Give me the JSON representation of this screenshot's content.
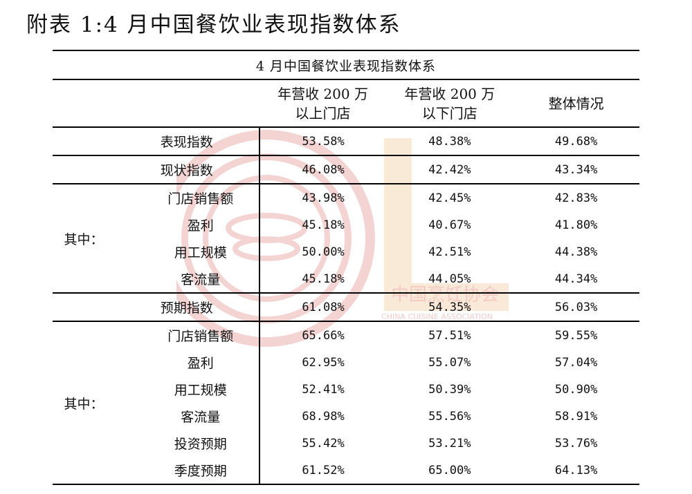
{
  "heading": "附表 1:4 月中国餐饮业表现指数体系",
  "table": {
    "caption": "4 月中国餐饮业表现指数体系",
    "columns": [
      "年营收 200 万\n以上门店",
      "年营收 200 万\n以下门店",
      "整体情况"
    ],
    "col1_line1": "年营收 200 万",
    "col1_line2": "以上门店",
    "col2_line1": "年营收 200 万",
    "col2_line2": "以下门店",
    "col3": "整体情况",
    "group_label": "其中：",
    "rows": [
      {
        "label": "表现指数",
        "values": [
          "53.58%",
          "48.38%",
          "49.68%"
        ]
      },
      {
        "label": "现状指数",
        "values": [
          "46.08%",
          "42.42%",
          "43.34%"
        ]
      },
      {
        "label": "门店销售额",
        "values": [
          "43.98%",
          "42.45%",
          "42.83%"
        ]
      },
      {
        "label": "盈利",
        "values": [
          "45.18%",
          "40.67%",
          "41.80%"
        ]
      },
      {
        "label": "用工规模",
        "values": [
          "50.00%",
          "42.51%",
          "44.38%"
        ]
      },
      {
        "label": "客流量",
        "values": [
          "45.18%",
          "44.05%",
          "44.34%"
        ]
      },
      {
        "label": "预期指数",
        "values": [
          "61.08%",
          "54.35%",
          "56.03%"
        ]
      },
      {
        "label": "门店销售额",
        "values": [
          "65.66%",
          "57.51%",
          "59.55%"
        ]
      },
      {
        "label": "盈利",
        "values": [
          "62.95%",
          "55.07%",
          "57.04%"
        ]
      },
      {
        "label": "用工规模",
        "values": [
          "52.41%",
          "50.39%",
          "50.90%"
        ]
      },
      {
        "label": "客流量",
        "values": [
          "68.98%",
          "55.56%",
          "58.91%"
        ]
      },
      {
        "label": "投资预期",
        "values": [
          "55.42%",
          "53.21%",
          "53.76%"
        ]
      },
      {
        "label": "季度预期",
        "values": [
          "61.52%",
          "65.00%",
          "64.13%"
        ]
      }
    ]
  },
  "watermark": {
    "text_cn": "中国烹饪协会",
    "text_en": "CHINA CUISINE ASSOCIATION",
    "color": "#f0b8b8"
  }
}
